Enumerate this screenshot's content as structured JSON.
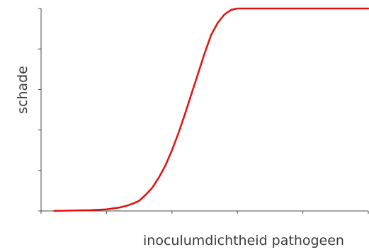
{
  "chart_data": {
    "type": "line",
    "xlabel": "inoculumdichtheid pathogeen",
    "ylabel": "schade",
    "xlim": [
      0,
      100
    ],
    "ylim": [
      0,
      100
    ],
    "x_ticks": [
      0,
      20,
      40,
      60,
      80,
      100
    ],
    "y_ticks": [
      0,
      20,
      40,
      60,
      80,
      100
    ],
    "grid": false,
    "line_color": "#e01010",
    "series": [
      {
        "x": [
          4,
          10,
          15,
          20,
          24,
          26,
          28,
          30,
          32,
          34,
          36,
          38,
          40,
          42,
          44,
          46,
          48,
          50,
          52,
          54,
          56,
          58,
          60,
          62,
          66,
          70,
          80,
          90,
          100
        ],
        "values": [
          0,
          0.2,
          0.4,
          0.8,
          1.7,
          2.5,
          3.6,
          5,
          8,
          11.5,
          16.5,
          22.5,
          30,
          38.5,
          48,
          58,
          68,
          78,
          87,
          93,
          97,
          99.3,
          100,
          100,
          100,
          100,
          100,
          100,
          100
        ]
      }
    ]
  }
}
